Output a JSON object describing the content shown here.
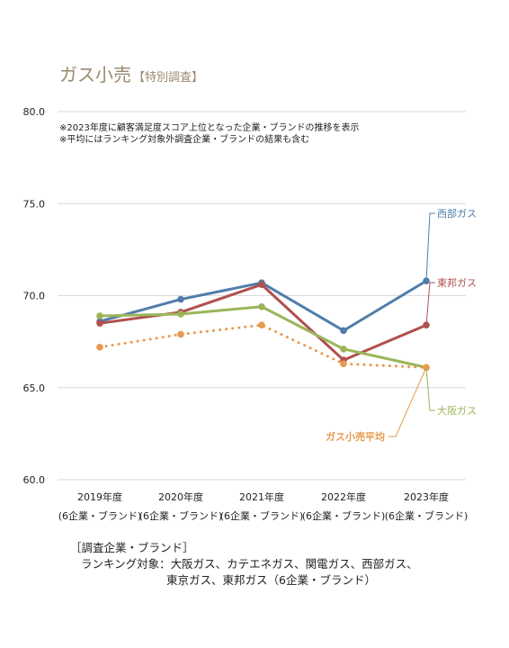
{
  "title": "ガス小売",
  "subtitle": "【特別調査】",
  "notes": [
    "※2023年度に顧客満足度スコア上位となった企業・ブランドの推移を表示",
    "※平均にはランキング対象外調査企業・ブランドの結果も含む"
  ],
  "chart_data": {
    "type": "line",
    "categories": [
      "2019年度",
      "2020年度",
      "2021年度",
      "2022年度",
      "2023年度"
    ],
    "category_sublabels": [
      "(6企業・ブランド)",
      "(6企業・ブランド)",
      "(6企業・ブランド)",
      "(6企業・ブランド)",
      "(6企業・ブランド)"
    ],
    "ylim": [
      60,
      80
    ],
    "yticks": [
      "60.0",
      "65.0",
      "70.0",
      "75.0",
      "80.0"
    ],
    "grid": true,
    "series": [
      {
        "name": "西部ガス",
        "color": "#4f7daa",
        "style": "solid",
        "values": [
          68.6,
          69.8,
          70.7,
          68.1,
          70.8
        ]
      },
      {
        "name": "東邦ガス",
        "color": "#b0504e",
        "style": "solid",
        "values": [
          68.5,
          69.1,
          70.6,
          66.5,
          68.4
        ]
      },
      {
        "name": "大阪ガス",
        "color": "#9bb55a",
        "style": "solid",
        "values": [
          68.9,
          69.0,
          69.4,
          67.1,
          66.1
        ]
      },
      {
        "name": "ガス小売平均",
        "color": "#e89a4e",
        "style": "dotted",
        "values": [
          67.2,
          67.9,
          68.4,
          66.3,
          66.1
        ]
      }
    ]
  },
  "footer": {
    "heading": "［調査企業・ブランド］",
    "line1": "ランキング対象：大阪ガス、カテエネガス、関電ガス、西部ガス、",
    "line2": "東京ガス、東邦ガス（6企業・ブランド）"
  }
}
